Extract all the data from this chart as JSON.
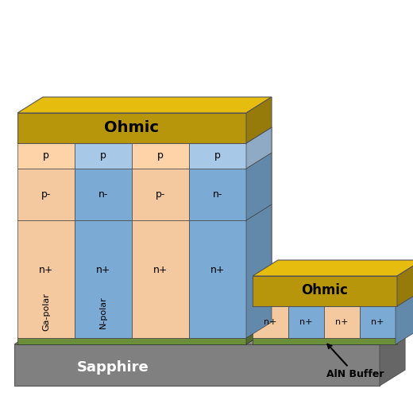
{
  "colors": {
    "ohmic": "#B8960C",
    "ohmic_top": "#D4A820",
    "ga_polar": "#F5C9A0",
    "n_polar": "#7BAAD4",
    "n_polar_light": "#A8C8E8",
    "p_layer_blue": "#A8C8E8",
    "side_blue_light": "#A8C8E8",
    "aln_buffer": "#6B8E3A",
    "sapphire": "#808080",
    "sapphire_top": "#909090",
    "background": "#FFFFFF"
  },
  "labels": {
    "ohmic": "Ohmic",
    "ohmic2": "Ohmic",
    "p": "p",
    "p_minus": "p-",
    "n_minus": "n-",
    "n_plus": "n+",
    "ga_polar": "Ga-polar",
    "n_polar": "N-polar",
    "sapphire": "Sapphire",
    "aln_buffer": "AlN Buffer"
  }
}
